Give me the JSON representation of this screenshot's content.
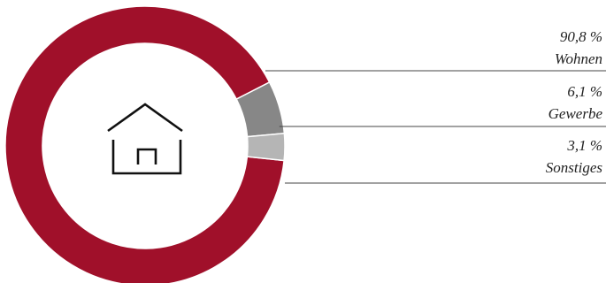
{
  "chart_data": {
    "type": "pie",
    "variant": "donut",
    "categories": [
      "Wohnen",
      "Gewerbe",
      "Sonstiges"
    ],
    "values": [
      90.8,
      6.1,
      3.1
    ],
    "value_labels": [
      "90,8 %",
      "6,1 %",
      "3,1 %"
    ],
    "colors": [
      "#a0102a",
      "#878787",
      "#b5b5b5"
    ],
    "center_icon": "house-icon",
    "legend_placement": "right"
  }
}
